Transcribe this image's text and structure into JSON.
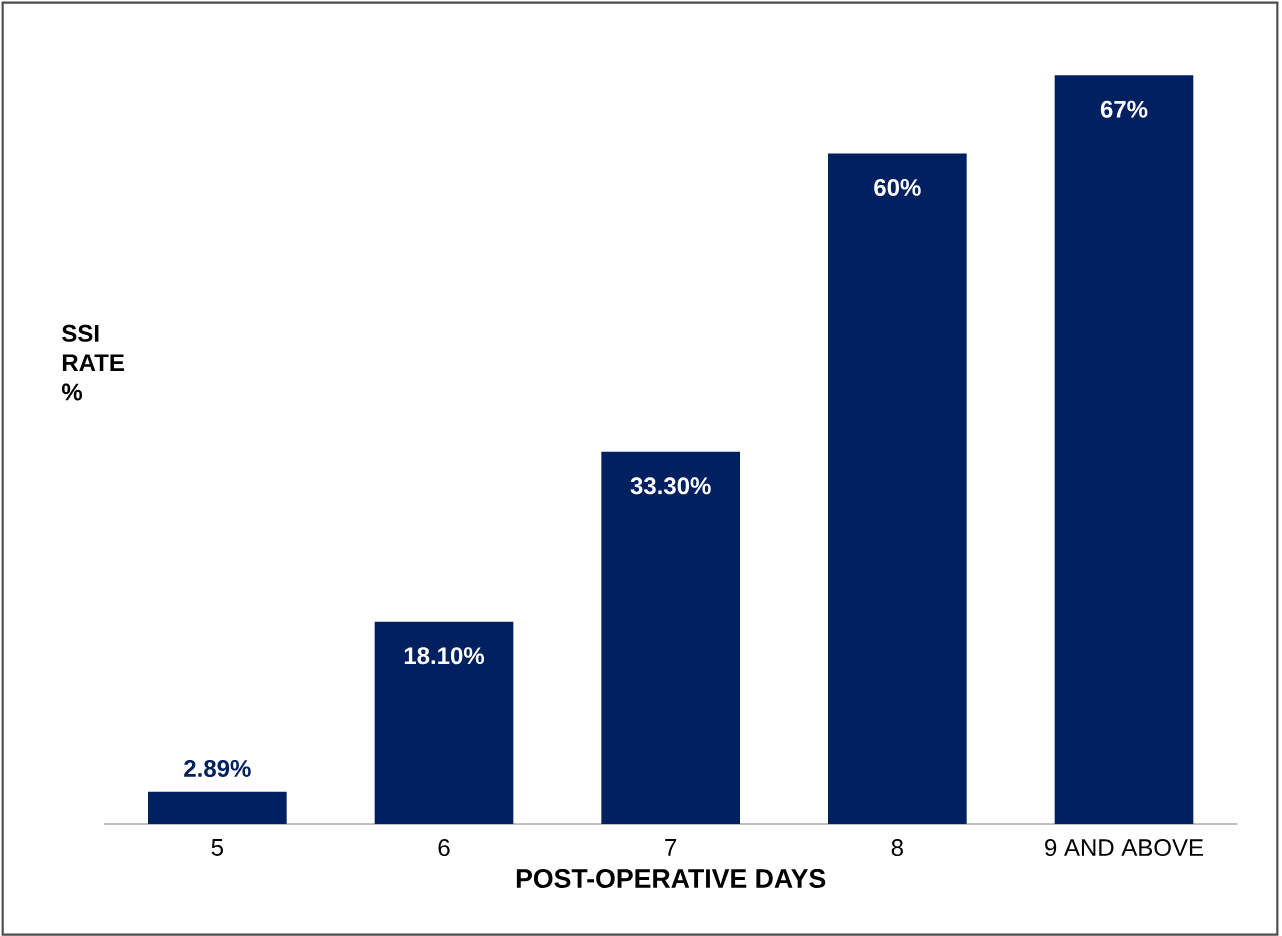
{
  "chart_data": {
    "type": "bar",
    "xlabel": "POST-OPERATIVE DAYS",
    "ylabel": "SSI RATE %",
    "categories": [
      "5",
      "6",
      "7",
      "8",
      "9 AND ABOVE"
    ],
    "values": [
      2.89,
      18.1,
      33.3,
      60,
      67
    ],
    "value_labels": [
      "2.89%",
      "18.10%",
      "33.30%",
      "60%",
      "67%"
    ],
    "color": "#002060"
  }
}
